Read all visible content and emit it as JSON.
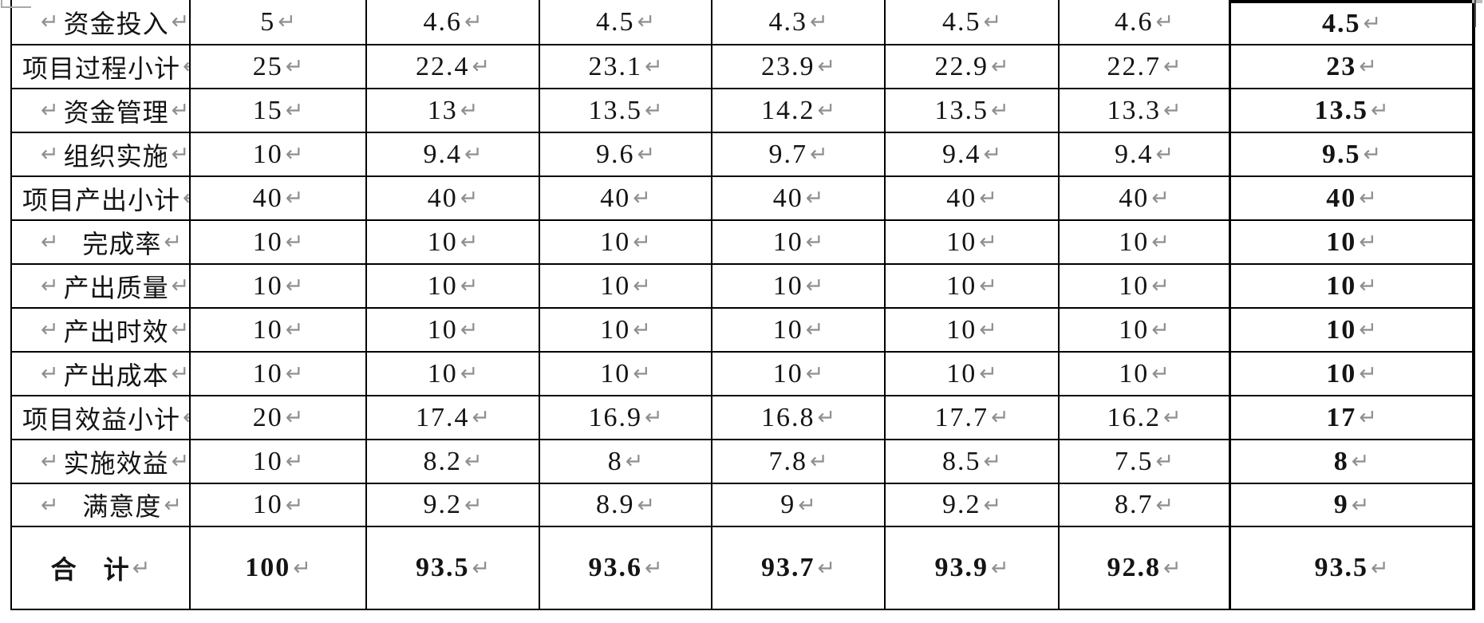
{
  "document": {
    "type": "word-table-with-formatting-marks",
    "line_break_mark": "↵",
    "mark_color": "#8f8f8f",
    "border_color": "#000000",
    "rows": [
      {
        "label": "资金投入",
        "style": "indent",
        "bold": false,
        "values": [
          "5",
          "4.6",
          "4.5",
          "4.3",
          "4.5",
          "4.6",
          "4.5"
        ]
      },
      {
        "label": "项目过程小计",
        "style": "flush",
        "bold": false,
        "values": [
          "25",
          "22.4",
          "23.1",
          "23.9",
          "22.9",
          "22.7",
          "23"
        ]
      },
      {
        "label": "资金管理",
        "style": "indent",
        "bold": false,
        "values": [
          "15",
          "13",
          "13.5",
          "14.2",
          "13.5",
          "13.3",
          "13.5"
        ]
      },
      {
        "label": "组织实施",
        "style": "indent",
        "bold": false,
        "values": [
          "10",
          "9.4",
          "9.6",
          "9.7",
          "9.4",
          "9.4",
          "9.5"
        ]
      },
      {
        "label": "项目产出小计",
        "style": "flush",
        "bold": false,
        "values": [
          "40",
          "40",
          "40",
          "40",
          "40",
          "40",
          "40"
        ]
      },
      {
        "label": "完成率",
        "style": "indent",
        "bold": false,
        "values": [
          "10",
          "10",
          "10",
          "10",
          "10",
          "10",
          "10"
        ]
      },
      {
        "label": "产出质量",
        "style": "indent",
        "bold": false,
        "values": [
          "10",
          "10",
          "10",
          "10",
          "10",
          "10",
          "10"
        ]
      },
      {
        "label": "产出时效",
        "style": "indent",
        "bold": false,
        "values": [
          "10",
          "10",
          "10",
          "10",
          "10",
          "10",
          "10"
        ]
      },
      {
        "label": "产出成本",
        "style": "indent",
        "bold": false,
        "values": [
          "10",
          "10",
          "10",
          "10",
          "10",
          "10",
          "10"
        ]
      },
      {
        "label": "项目效益小计",
        "style": "flush",
        "bold": false,
        "values": [
          "20",
          "17.4",
          "16.9",
          "16.8",
          "17.7",
          "16.2",
          "17"
        ]
      },
      {
        "label": "实施效益",
        "style": "indent",
        "bold": false,
        "values": [
          "10",
          "8.2",
          "8",
          "7.8",
          "8.5",
          "7.5",
          "8"
        ]
      },
      {
        "label": "满意度",
        "style": "indent",
        "bold": false,
        "values": [
          "10",
          "9.2",
          "8.9",
          "9",
          "9.2",
          "8.7",
          "9"
        ]
      },
      {
        "label": "合　计",
        "style": "center",
        "bold": true,
        "values": [
          "100",
          "93.5",
          "93.6",
          "93.7",
          "93.9",
          "92.8",
          "93.5"
        ]
      }
    ]
  }
}
